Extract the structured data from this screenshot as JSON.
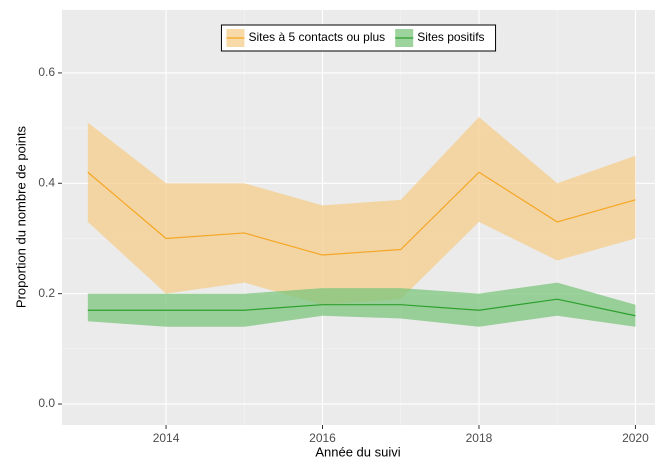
{
  "chart_data": {
    "type": "line",
    "x_label": "Année du suivi",
    "y_label": "Proportion du nombre de points",
    "x": [
      2013,
      2014,
      2015,
      2016,
      2017,
      2018,
      2019,
      2020
    ],
    "series": [
      {
        "name": "Sites à 5 contacts ou plus",
        "color": "#f5a623",
        "fill": "#f5cd8c",
        "values": [
          0.42,
          0.3,
          0.31,
          0.27,
          0.28,
          0.42,
          0.33,
          0.37
        ],
        "lower": [
          0.33,
          0.2,
          0.22,
          0.18,
          0.19,
          0.33,
          0.26,
          0.3
        ],
        "upper": [
          0.51,
          0.4,
          0.4,
          0.36,
          0.37,
          0.52,
          0.4,
          0.45
        ]
      },
      {
        "name": "Sites positifs",
        "color": "#2ca02c",
        "fill": "#7cc47c",
        "values": [
          0.17,
          0.17,
          0.17,
          0.18,
          0.18,
          0.17,
          0.19,
          0.16
        ],
        "lower": [
          0.15,
          0.14,
          0.14,
          0.16,
          0.155,
          0.14,
          0.16,
          0.14
        ],
        "upper": [
          0.2,
          0.2,
          0.2,
          0.21,
          0.21,
          0.2,
          0.22,
          0.18
        ]
      }
    ],
    "xlim": [
      2012.67,
      2020.25
    ],
    "ylim": [
      -0.038,
      0.714
    ],
    "xticks": [
      2014,
      2016,
      2018,
      2020
    ],
    "yticks": [
      {
        "value": 0,
        "label": "0.0"
      },
      {
        "value": 0.2,
        "label": "0.2"
      },
      {
        "value": 0.4,
        "label": "0.4"
      },
      {
        "value": 0.6,
        "label": "0.6"
      }
    ],
    "grid": true,
    "legend_position": "top"
  }
}
